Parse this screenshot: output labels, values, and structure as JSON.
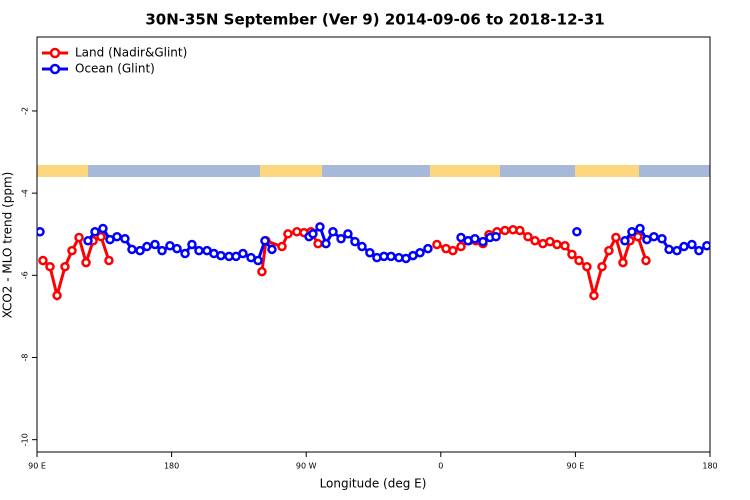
{
  "chart_data": {
    "type": "line",
    "title": "30N-35N September (Ver 9)   2014-09-06 to 2018-12-31",
    "x_label": "Longitude (deg E)",
    "y_label": "XCO2 - MLO trend (ppm)",
    "xlim": [
      90,
      540
    ],
    "ylim": [
      -10.3,
      -0.2
    ],
    "xticks": [
      {
        "value": 90,
        "label": "90 E"
      },
      {
        "value": 180,
        "label": "180"
      },
      {
        "value": 270,
        "label": "90 W"
      },
      {
        "value": 360,
        "label": "0"
      },
      {
        "value": 450,
        "label": "90 E"
      },
      {
        "value": 540,
        "label": "180"
      }
    ],
    "yticks": [
      -10,
      -8,
      -6,
      -4,
      -2
    ],
    "legend": "top-left",
    "series": [
      {
        "name": "Land (Nadir&Glint)",
        "color": "#ff0000",
        "x": [
          94.0,
          98.7,
          103.4,
          108.7,
          113.4,
          118.1,
          122.8,
          127.5,
          132.8,
          138.1,
          null,
          240.4,
          243.1,
          253.8,
          257.8,
          263.8,
          268.5,
          273.2,
          277.9,
          null,
          357.4,
          363.5,
          368.1,
          373.5,
          378.8,
          383.5,
          388.2,
          392.2,
          397.6,
          402.9,
          408.3,
          412.9,
          418.3,
          423.0,
          428.3,
          433.0,
          437.7,
          443.0,
          447.7,
          452.4,
          457.7,
          462.4,
          467.8,
          472.4,
          477.1,
          481.8,
          486.5,
          491.8,
          497.2
        ],
        "values": [
          -5.64,
          -5.79,
          -6.49,
          -5.79,
          -5.4,
          -5.08,
          -5.69,
          -5.16,
          -5.06,
          -5.64,
          null,
          -5.91,
          -5.16,
          -5.3,
          -4.99,
          -4.94,
          -4.96,
          -4.94,
          -5.23,
          null,
          -5.25,
          -5.35,
          -5.4,
          -5.3,
          -5.16,
          -5.16,
          -5.23,
          -5.01,
          -4.94,
          -4.91,
          -4.89,
          -4.91,
          -5.06,
          -5.16,
          -5.23,
          -5.18,
          -5.25,
          -5.28,
          -5.49,
          -5.64,
          -5.79,
          -6.49,
          -5.79,
          -5.4,
          -5.08,
          -5.69,
          -5.16,
          -5.06,
          -5.64
        ]
      },
      {
        "name": "Ocean (Glint)",
        "color": "#0000ff",
        "x": [
          92.0,
          null,
          124.1,
          128.8,
          134.1,
          138.8,
          143.5,
          148.8,
          153.5,
          158.9,
          163.5,
          168.9,
          173.6,
          178.9,
          183.6,
          189.0,
          193.6,
          198.3,
          203.7,
          208.3,
          213.0,
          218.4,
          223.1,
          227.7,
          233.1,
          237.8,
          242.4,
          247.1,
          null,
          271.9,
          274.5,
          279.2,
          283.2,
          287.9,
          293.3,
          297.9,
          302.6,
          307.3,
          312.6,
          317.3,
          322.0,
          326.7,
          332.0,
          336.7,
          341.4,
          346.1,
          351.4,
          null,
          373.5,
          378.2,
          382.8,
          388.2,
          392.9,
          396.9,
          null,
          451.0,
          null,
          483.1,
          487.8,
          493.2,
          497.8,
          502.5,
          507.9,
          512.6,
          517.9,
          522.6,
          527.9,
          532.6,
          537.9
        ],
        "values": [
          -4.94,
          null,
          -5.16,
          -4.94,
          -4.86,
          -5.13,
          -5.06,
          -5.11,
          -5.37,
          -5.4,
          -5.3,
          -5.25,
          -5.4,
          -5.28,
          -5.35,
          -5.47,
          -5.25,
          -5.4,
          -5.4,
          -5.47,
          -5.52,
          -5.54,
          -5.54,
          -5.47,
          -5.57,
          -5.64,
          -5.16,
          -5.37,
          null,
          -5.06,
          -4.99,
          -4.82,
          -5.23,
          -4.94,
          -5.11,
          -4.99,
          -5.18,
          -5.3,
          -5.45,
          -5.57,
          -5.54,
          -5.54,
          -5.57,
          -5.59,
          -5.52,
          -5.45,
          -5.35,
          null,
          -5.08,
          -5.16,
          -5.11,
          -5.18,
          -5.08,
          -5.06,
          null,
          -4.94,
          null,
          -5.16,
          -4.94,
          -4.86,
          -5.13,
          -5.06,
          -5.11,
          -5.37,
          -5.4,
          -5.3,
          -5.25,
          -5.4,
          -5.28
        ]
      }
    ]
  }
}
